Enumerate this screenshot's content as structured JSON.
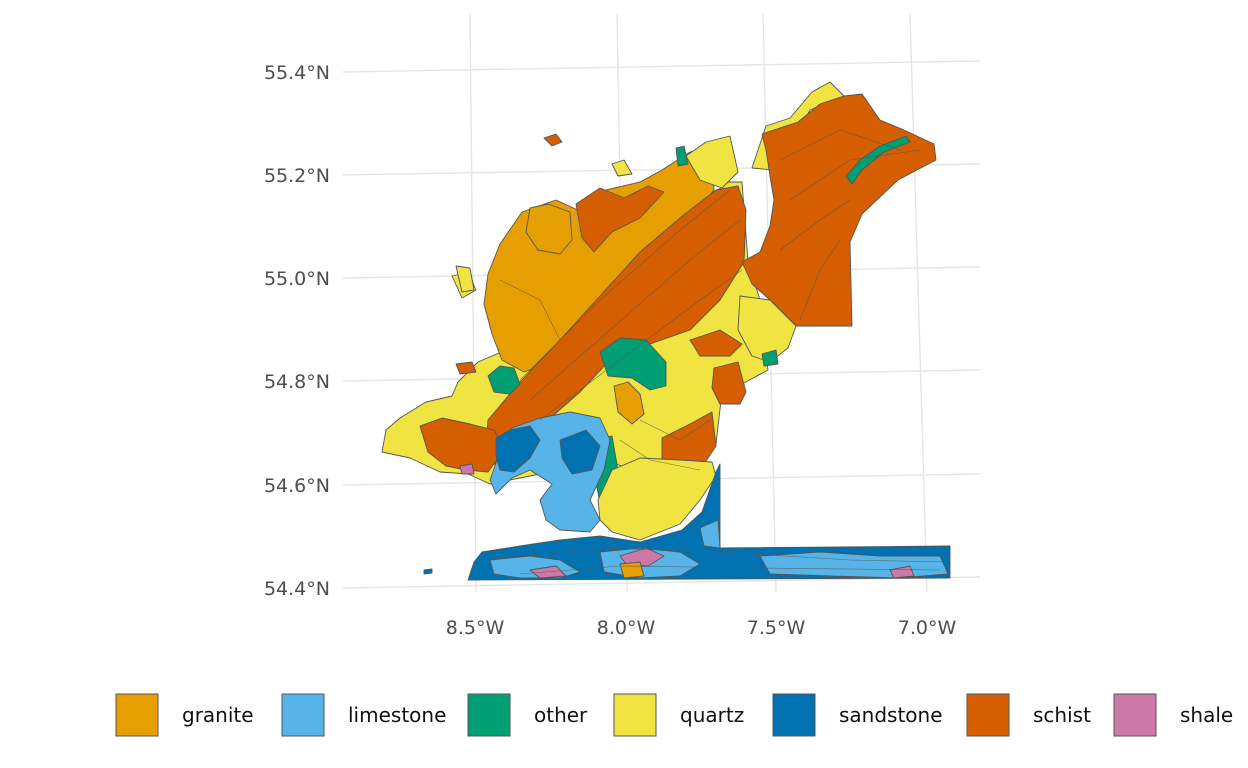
{
  "map": {
    "type": "choropleth",
    "title": "",
    "theme": "minimal",
    "grid": true,
    "legend_position": "bottom",
    "x_axis": {
      "ticks": [
        {
          "label": "8.5°W"
        },
        {
          "label": "8.0°W"
        },
        {
          "label": "7.5°W"
        },
        {
          "label": "7.0°W"
        }
      ]
    },
    "y_axis": {
      "ticks": [
        {
          "label": "55.4°N"
        },
        {
          "label": "55.2°N"
        },
        {
          "label": "55.0°N"
        },
        {
          "label": "54.8°N"
        },
        {
          "label": "54.6°N"
        },
        {
          "label": "54.4°N"
        }
      ]
    },
    "legend": [
      {
        "name": "granite",
        "color": "#E69F00"
      },
      {
        "name": "limestone",
        "color": "#56B4E9"
      },
      {
        "name": "other",
        "color": "#009E73"
      },
      {
        "name": "quartz",
        "color": "#F0E442"
      },
      {
        "name": "sandstone",
        "color": "#0072B2"
      },
      {
        "name": "schist",
        "color": "#D55E00"
      },
      {
        "name": "shale",
        "color": "#CC79A7"
      }
    ]
  }
}
